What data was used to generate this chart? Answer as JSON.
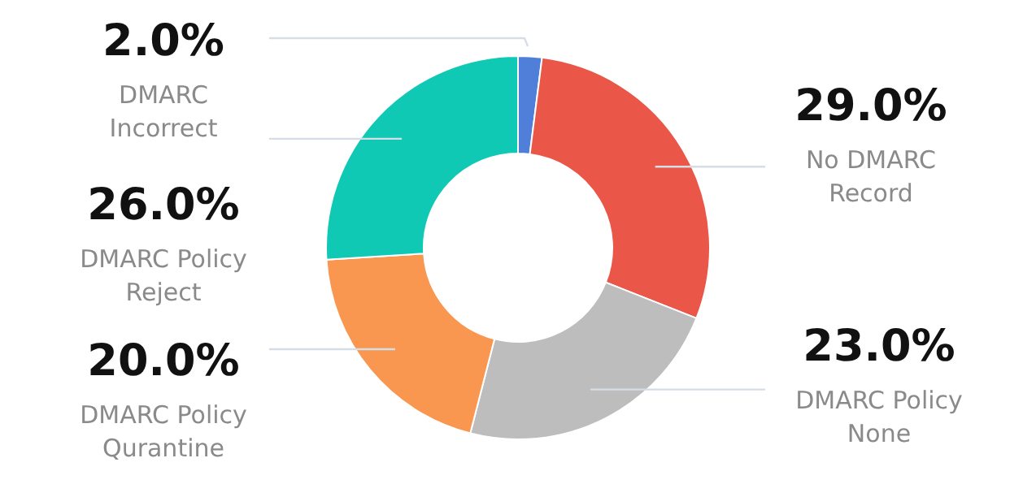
{
  "chart_data": {
    "type": "donut",
    "categories": [
      "DMARC\nIncorrect",
      "No DMARC\nRecord",
      "DMARC Policy\nNone",
      "DMARC Policy\nQurantine",
      "DMARC Policy\nReject"
    ],
    "values": [
      2,
      29,
      23,
      20,
      26
    ],
    "colors": [
      "#4f7fd8",
      "#ea5647",
      "#bdbdbd",
      "#f9964f",
      "#10c9b5"
    ],
    "value_labels": [
      "2.0%",
      "29.0%",
      "23.0%",
      "20.0%",
      "26.0%"
    ]
  }
}
